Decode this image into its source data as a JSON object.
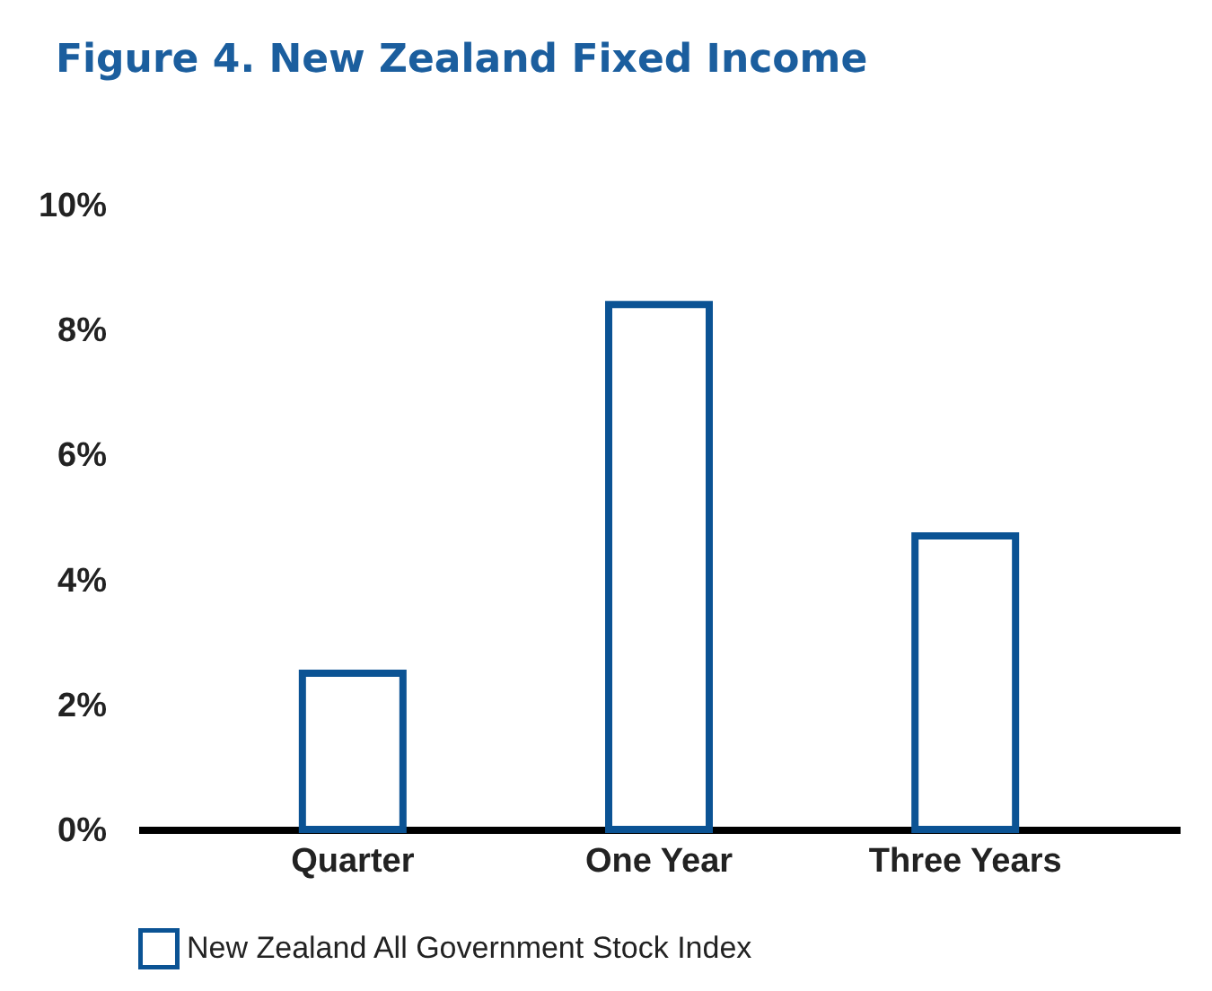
{
  "chart_data": {
    "type": "bar",
    "title": "Figure 4. New Zealand Fixed Income",
    "categories": [
      "Quarter",
      "One Year",
      "Three Years"
    ],
    "series": [
      {
        "name": "New Zealand All Government Stock Index",
        "color": "#0b5394",
        "values": [
          2.5,
          8.4,
          4.7
        ]
      }
    ],
    "ylim": [
      0,
      10
    ],
    "yticks": [
      {
        "value": 0,
        "label": "0%"
      },
      {
        "value": 2,
        "label": "2%"
      },
      {
        "value": 4,
        "label": "4%"
      },
      {
        "value": 6,
        "label": "6%"
      },
      {
        "value": 8,
        "label": "8%"
      },
      {
        "value": 10,
        "label": "10%"
      }
    ],
    "grid": false,
    "legend": "bottom"
  }
}
